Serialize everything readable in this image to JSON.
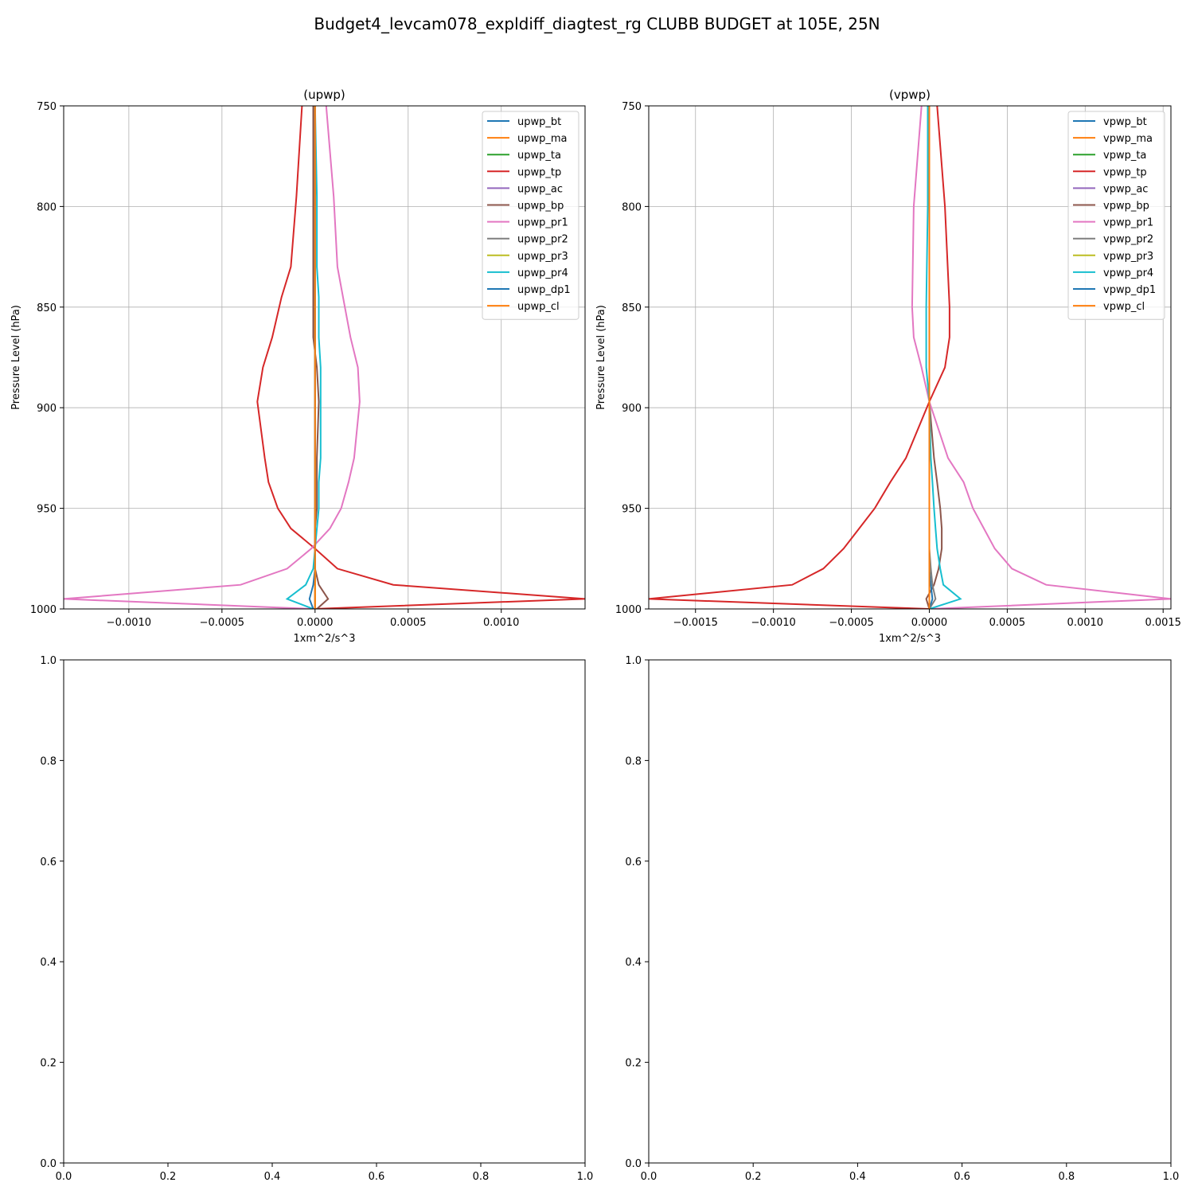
{
  "figure_title": "Budget4_levcam078_expldiff_diagtest_rg CLUBB BUDGET at 105E, 25N",
  "chart_data": [
    {
      "type": "line",
      "title": "(upwp)",
      "xlabel": "1xm^2/s^3",
      "ylabel": "Pressure Level (hPa)",
      "xlim": [
        -0.00135,
        0.00145
      ],
      "ylim": [
        1000,
        750
      ],
      "x_ticks": [
        -0.001,
        -0.0005,
        0.0,
        0.0005,
        0.001
      ],
      "x_tick_labels": [
        "−0.0010",
        "−0.0005",
        "0.0000",
        "0.0005",
        "0.0010"
      ],
      "y_ticks": [
        750,
        800,
        850,
        900,
        950,
        1000
      ],
      "y_tick_labels": [
        "750",
        "800",
        "850",
        "900",
        "950",
        "1000"
      ],
      "grid": true,
      "legend": "upper right",
      "levels": [
        750,
        795,
        830,
        845,
        865,
        880,
        897,
        925,
        937,
        950,
        960,
        970,
        980,
        988,
        995,
        1000
      ],
      "series": [
        {
          "name": "upwp_bt",
          "color": "#1f77b4",
          "values": [
            0,
            0,
            0,
            0,
            0,
            0,
            0,
            0,
            0,
            0,
            0,
            0,
            0,
            0,
            0,
            0
          ]
        },
        {
          "name": "upwp_ma",
          "color": "#ff7f0e",
          "values": [
            0,
            0,
            0,
            0,
            0,
            0,
            0,
            0,
            0,
            0,
            0,
            0,
            0,
            0,
            0,
            0
          ]
        },
        {
          "name": "upwp_ta",
          "color": "#2ca02c",
          "values": [
            0,
            0,
            0,
            0,
            0,
            0,
            0,
            0,
            0,
            0,
            0,
            0,
            0,
            0,
            0,
            0
          ]
        },
        {
          "name": "upwp_tp",
          "color": "#d62728",
          "values": [
            -7e-05,
            -0.0001,
            -0.00013,
            -0.00018,
            -0.00023,
            -0.00028,
            -0.00031,
            -0.00027,
            -0.00025,
            -0.0002,
            -0.00013,
            0.0,
            0.00012,
            0.00042,
            0.00145,
            -1e-05
          ]
        },
        {
          "name": "upwp_ac",
          "color": "#9467bd",
          "values": [
            0,
            0,
            0,
            0,
            0,
            0,
            0,
            0,
            0,
            0,
            0,
            0,
            0,
            0,
            0,
            0
          ]
        },
        {
          "name": "upwp_bp",
          "color": "#8c564b",
          "values": [
            -1e-05,
            -1e-05,
            -1e-05,
            -1e-05,
            -1e-05,
            1e-05,
            2e-05,
            1e-05,
            1e-05,
            1e-05,
            0.0,
            0.0,
            0.0,
            2e-05,
            7e-05,
            1e-05
          ]
        },
        {
          "name": "upwp_pr1",
          "color": "#e377c2",
          "values": [
            6e-05,
            0.0001,
            0.00012,
            0.00015,
            0.00019,
            0.00023,
            0.00024,
            0.00021,
            0.00018,
            0.00014,
            8e-05,
            -2e-05,
            -0.00015,
            -0.0004,
            -0.00135,
            -1e-05
          ]
        },
        {
          "name": "upwp_pr2",
          "color": "#7f7f7f",
          "values": [
            0,
            0,
            0,
            0,
            0,
            0,
            0,
            0,
            0,
            0,
            0,
            0,
            0,
            0,
            0,
            0
          ]
        },
        {
          "name": "upwp_pr3",
          "color": "#bcbd22",
          "values": [
            0,
            0,
            0,
            0,
            0,
            0,
            0,
            0,
            0,
            0,
            0,
            0,
            0,
            0,
            0,
            0
          ]
        },
        {
          "name": "upwp_pr4",
          "color": "#17becf",
          "values": [
            0.0,
            1e-05,
            1e-05,
            2e-05,
            2e-05,
            3e-05,
            3e-05,
            3e-05,
            2e-05,
            2e-05,
            1e-05,
            0.0,
            -1e-05,
            -5e-05,
            -0.00015,
            -1e-05
          ]
        },
        {
          "name": "upwp_dp1",
          "color": "#1f77b4",
          "values": [
            0,
            0,
            0,
            0,
            0,
            0,
            0,
            0,
            0,
            0,
            0,
            0,
            0,
            -1e-05,
            -3e-05,
            -1e-05
          ]
        },
        {
          "name": "upwp_cl",
          "color": "#ff7f0e",
          "values": [
            0,
            0,
            0,
            0,
            0,
            0,
            0,
            0,
            0,
            0,
            0,
            0,
            0,
            0,
            0,
            0
          ]
        }
      ]
    },
    {
      "type": "line",
      "title": "(vpwp)",
      "xlabel": "1xm^2/s^3",
      "ylabel": "Pressure Level (hPa)",
      "xlim": [
        -0.0018,
        0.00155
      ],
      "ylim": [
        1000,
        750
      ],
      "x_ticks": [
        -0.0015,
        -0.001,
        -0.0005,
        0.0,
        0.0005,
        0.001,
        0.0015
      ],
      "x_tick_labels": [
        "−0.0015",
        "−0.0010",
        "−0.0005",
        "0.0000",
        "0.0005",
        "0.0010",
        "0.0015"
      ],
      "y_ticks": [
        750,
        800,
        850,
        900,
        950,
        1000
      ],
      "y_tick_labels": [
        "750",
        "800",
        "850",
        "900",
        "950",
        "1000"
      ],
      "grid": true,
      "legend": "upper right",
      "levels": [
        750,
        800,
        850,
        865,
        880,
        897,
        925,
        937,
        950,
        960,
        970,
        980,
        988,
        995,
        1000
      ],
      "series": [
        {
          "name": "vpwp_bt",
          "color": "#1f77b4",
          "values": [
            0,
            0,
            0,
            0,
            0,
            0,
            0,
            0,
            0,
            0,
            0,
            0,
            0,
            0,
            0
          ]
        },
        {
          "name": "vpwp_ma",
          "color": "#ff7f0e",
          "values": [
            0,
            0,
            0,
            0,
            0,
            0,
            0,
            0,
            0,
            0,
            0,
            0,
            0,
            0,
            0
          ]
        },
        {
          "name": "vpwp_ta",
          "color": "#2ca02c",
          "values": [
            0,
            0,
            0,
            0,
            0,
            0,
            0,
            0,
            0,
            0,
            0,
            0,
            0,
            0,
            0
          ]
        },
        {
          "name": "vpwp_tp",
          "color": "#d62728",
          "values": [
            5e-05,
            0.0001,
            0.00013,
            0.00013,
            0.0001,
            0.0,
            -0.00015,
            -0.00025,
            -0.00035,
            -0.00045,
            -0.00055,
            -0.00068,
            -0.00088,
            -0.0018,
            0.0
          ]
        },
        {
          "name": "vpwp_ac",
          "color": "#9467bd",
          "values": [
            0,
            0,
            0,
            0,
            0,
            0,
            0,
            0,
            0,
            0,
            0,
            0,
            0,
            0,
            0
          ]
        },
        {
          "name": "vpwp_bp",
          "color": "#8c564b",
          "values": [
            0,
            0,
            0,
            0,
            0,
            0,
            3e-05,
            5e-05,
            7e-05,
            8e-05,
            8e-05,
            6e-05,
            3e-05,
            -2e-05,
            0.0
          ]
        },
        {
          "name": "vpwp_pr1",
          "color": "#e377c2",
          "values": [
            -5e-05,
            -0.0001,
            -0.00011,
            -0.0001,
            -5e-05,
            0.0,
            0.00012,
            0.00022,
            0.00028,
            0.00035,
            0.00042,
            0.00053,
            0.00075,
            0.00155,
            0.0
          ]
        },
        {
          "name": "vpwp_pr2",
          "color": "#7f7f7f",
          "values": [
            0,
            0,
            0,
            0,
            0,
            0,
            0,
            0,
            0,
            0,
            0,
            1e-05,
            2e-05,
            4e-05,
            0.0
          ]
        },
        {
          "name": "vpwp_pr3",
          "color": "#bcbd22",
          "values": [
            0,
            0,
            0,
            0,
            0,
            0,
            0,
            0,
            0,
            0,
            0,
            0,
            0,
            0,
            0
          ]
        },
        {
          "name": "vpwp_pr4",
          "color": "#17becf",
          "values": [
            -1e-05,
            -1e-05,
            -2e-05,
            -2e-05,
            -2e-05,
            0.0,
            1e-05,
            2e-05,
            3e-05,
            4e-05,
            5e-05,
            7e-05,
            9e-05,
            0.0002,
            0.0
          ]
        },
        {
          "name": "vpwp_dp1",
          "color": "#1f77b4",
          "values": [
            0,
            0,
            0,
            0,
            0,
            0,
            0,
            0,
            0,
            0,
            0,
            0,
            1e-05,
            2e-05,
            0.0
          ]
        },
        {
          "name": "vpwp_cl",
          "color": "#ff7f0e",
          "values": [
            0,
            0,
            0,
            0,
            0,
            0,
            0,
            0,
            0,
            0,
            0,
            0,
            0,
            0,
            0
          ]
        }
      ]
    },
    {
      "type": "line",
      "title": "",
      "xlim": [
        0.0,
        1.0
      ],
      "ylim": [
        0.0,
        1.0
      ],
      "x_tick_labels": [
        "0.0",
        "0.2",
        "0.4",
        "0.6",
        "0.8",
        "1.0"
      ],
      "y_tick_labels": [
        "0.0",
        "0.2",
        "0.4",
        "0.6",
        "0.8",
        "1.0"
      ],
      "grid": false,
      "series": []
    },
    {
      "type": "line",
      "title": "",
      "xlim": [
        0.0,
        1.0
      ],
      "ylim": [
        0.0,
        1.0
      ],
      "x_tick_labels": [
        "0.0",
        "0.2",
        "0.4",
        "0.6",
        "0.8",
        "1.0"
      ],
      "y_tick_labels": [
        "0.0",
        "0.2",
        "0.4",
        "0.6",
        "0.8",
        "1.0"
      ],
      "grid": false,
      "series": []
    }
  ]
}
